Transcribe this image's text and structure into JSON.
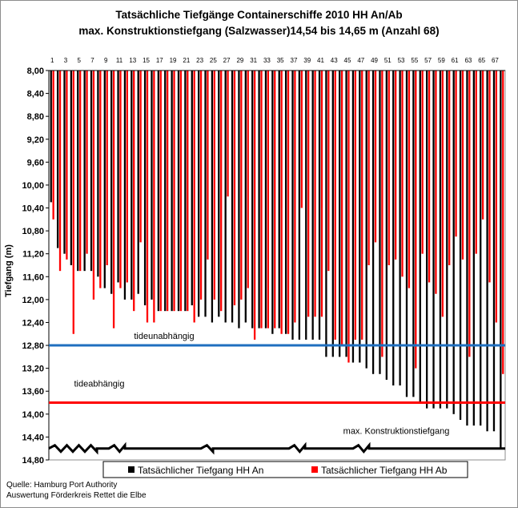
{
  "title_line1": "Tatsächliche Tiefgänge Containerschiffe 2010 HH An/Ab",
  "title_line2": "max. Konstruktionstiefgang (Salzwasser)14,54 bis 14,65 m (Anzahl 68)",
  "source_line1": "Quelle: Hamburg Port Authority",
  "source_line2": "Auswertung Förderkreis Rettet die Elbe",
  "chart_data": {
    "type": "bar",
    "ylabel": "Tiefgang (m)",
    "ylim": [
      8.0,
      14.8
    ],
    "y_reversed": true,
    "yticks": [
      "8,00",
      "8,40",
      "8,80",
      "9,20",
      "9,60",
      "10,00",
      "10,40",
      "10,80",
      "11,20",
      "11,60",
      "12,00",
      "12,40",
      "12,80",
      "13,20",
      "13,60",
      "14,00",
      "14,40",
      "14,80"
    ],
    "x_tick_labels": [
      "1",
      "3",
      "5",
      "7",
      "9",
      "11",
      "13",
      "15",
      "17",
      "19",
      "21",
      "23",
      "25",
      "27",
      "29",
      "31",
      "33",
      "35",
      "37",
      "39",
      "41",
      "43",
      "45",
      "47",
      "49",
      "51",
      "53",
      "55",
      "57",
      "59",
      "61",
      "63",
      "65",
      "67"
    ],
    "categories": [
      1,
      2,
      3,
      4,
      5,
      6,
      7,
      8,
      9,
      10,
      11,
      12,
      13,
      14,
      15,
      16,
      17,
      18,
      19,
      20,
      21,
      22,
      23,
      24,
      25,
      26,
      27,
      28,
      29,
      30,
      31,
      32,
      33,
      34,
      35,
      36,
      37,
      38,
      39,
      40,
      41,
      42,
      43,
      44,
      45,
      46,
      47,
      48,
      49,
      50,
      51,
      52,
      53,
      54,
      55,
      56,
      57,
      58,
      59,
      60,
      61,
      62,
      63,
      64,
      65,
      66,
      67,
      68
    ],
    "series": [
      {
        "name": "Tatsächlicher Tiefgang HH An",
        "color": "#000000",
        "values": [
          10.3,
          11.1,
          11.2,
          11.4,
          11.5,
          11.5,
          11.5,
          11.6,
          11.8,
          11.9,
          11.7,
          12.0,
          12.0,
          11.9,
          12.1,
          12.0,
          12.2,
          12.2,
          12.2,
          12.2,
          12.2,
          12.1,
          12.3,
          12.3,
          12.4,
          12.3,
          12.4,
          12.4,
          12.5,
          12.4,
          12.5,
          12.5,
          12.5,
          12.6,
          12.5,
          12.6,
          12.7,
          12.7,
          12.7,
          12.7,
          12.7,
          13.0,
          13.0,
          13.0,
          13.0,
          13.1,
          13.1,
          13.2,
          13.3,
          13.3,
          13.4,
          13.5,
          13.5,
          13.7,
          13.7,
          13.8,
          13.9,
          13.9,
          13.9,
          13.9,
          14.0,
          14.1,
          14.2,
          14.2,
          14.2,
          14.3,
          14.3,
          14.6
        ]
      },
      {
        "name": "Tatsächlicher Tiefgang HH Ab",
        "color": "#ff0000",
        "values": [
          10.6,
          11.5,
          11.3,
          12.6,
          11.5,
          11.2,
          12.0,
          11.8,
          11.4,
          12.5,
          11.8,
          11.7,
          12.2,
          11.0,
          12.4,
          12.4,
          12.2,
          12.2,
          12.2,
          12.2,
          12.2,
          12.4,
          12.0,
          11.3,
          12.0,
          12.2,
          10.2,
          12.1,
          12.0,
          11.8,
          12.7,
          12.5,
          12.5,
          12.5,
          12.6,
          12.6,
          12.4,
          10.4,
          12.3,
          12.3,
          12.3,
          11.5,
          12.7,
          12.8,
          13.1,
          12.7,
          12.7,
          11.4,
          11.0,
          13.0,
          11.4,
          11.3,
          11.6,
          11.8,
          13.2,
          11.2,
          11.7,
          11.9,
          12.3,
          11.4,
          10.9,
          11.3,
          13.0,
          11.2,
          10.6,
          11.7,
          12.4,
          13.3
        ]
      }
    ],
    "reference_lines": [
      {
        "label": "tideunabhängig",
        "value": 12.8,
        "color": "#1f6fbf"
      },
      {
        "label": "tideabhängig",
        "value": 13.8,
        "color": "#ff0000"
      },
      {
        "label": "max. Konstruktionstiefgang",
        "value": 14.6,
        "color": "#000000"
      }
    ],
    "legend_position": "bottom"
  }
}
